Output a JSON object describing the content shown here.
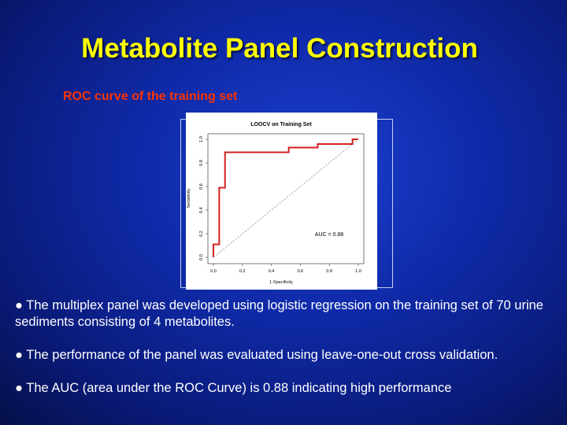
{
  "slide": {
    "title": "Metabolite Panel Construction",
    "subtitle": "ROC curve of the training set",
    "bullets": [
      "● The multiplex panel was developed using logistic regression on the training set of 70 urine sediments consisting of 4 metabolites.",
      "● The performance of the panel was evaluated using leave-one-out cross validation.",
      "● The AUC (area under the ROC Curve) is 0.88 indicating high performance"
    ]
  },
  "chart_data": {
    "type": "line",
    "title": "LOOCV on Training Set",
    "xlabel": "1-Specificity",
    "ylabel": "Sensitivity",
    "xlim": [
      0,
      1
    ],
    "ylim": [
      0,
      1
    ],
    "xticks": [
      "0.0",
      "0.2",
      "0.4",
      "0.6",
      "0.8",
      "1.0"
    ],
    "yticks": [
      "0.0",
      "0.2",
      "0.4",
      "0.6",
      "0.8",
      "1.0"
    ],
    "annotation": "AUC = 0.88",
    "series": [
      {
        "name": "ROC",
        "color": "#d42020",
        "x": [
          0,
          0,
          0.04,
          0.04,
          0.08,
          0.08,
          0.52,
          0.52,
          0.72,
          0.72,
          0.96,
          0.96,
          1
        ],
        "y": [
          0,
          0.11,
          0.11,
          0.59,
          0.59,
          0.89,
          0.89,
          0.93,
          0.93,
          0.96,
          0.96,
          1,
          1
        ]
      },
      {
        "name": "reference",
        "color": "#888888",
        "x": [
          0,
          1
        ],
        "y": [
          0,
          1
        ]
      }
    ],
    "grid": false
  }
}
